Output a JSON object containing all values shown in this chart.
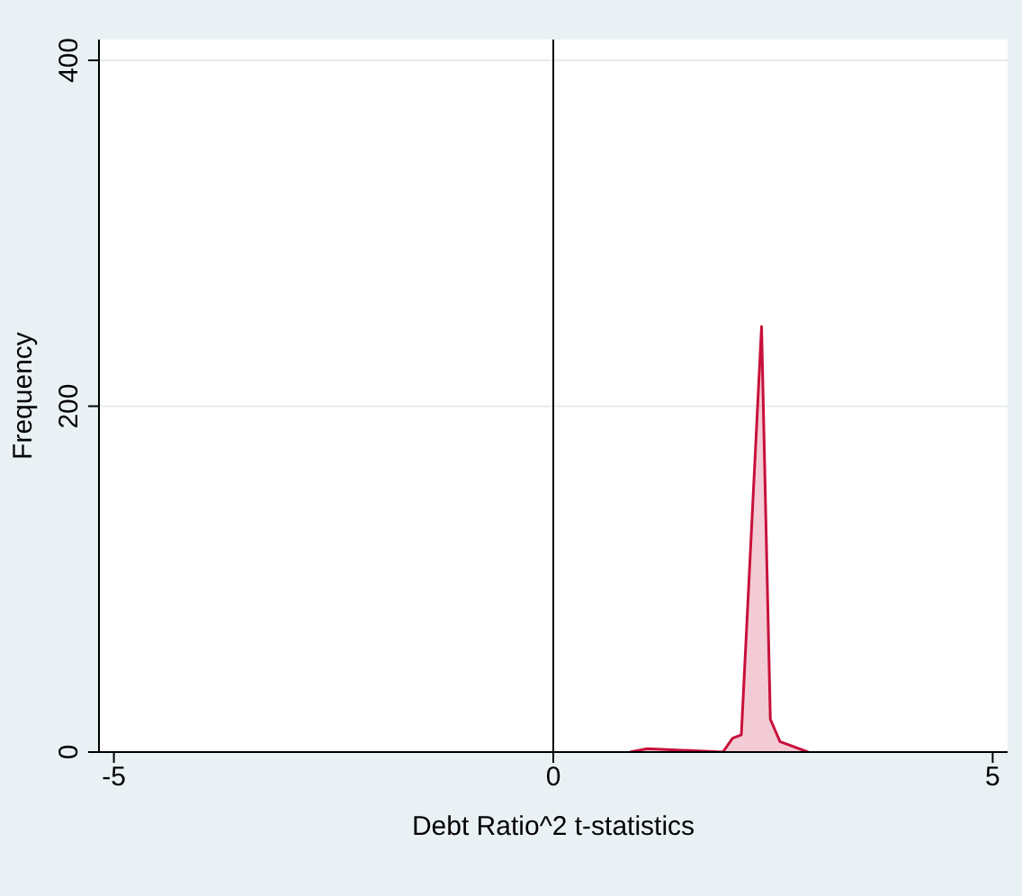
{
  "chart_data": {
    "type": "area",
    "xlabel": "Debt Ratio^2 t-statistics",
    "ylabel": "Frequency",
    "x": [
      0.87,
      1.07,
      1.93,
      2.04,
      2.14,
      2.37,
      2.47,
      2.58,
      2.9
    ],
    "series": [
      {
        "color": "#c8103a",
        "values": [
          0,
          2,
          0,
          8,
          10,
          246,
          19,
          6,
          0
        ]
      }
    ],
    "xlim": [
      -5.17,
      5.17
    ],
    "xticks": [
      -5,
      0,
      5
    ],
    "ylim": [
      0,
      412
    ],
    "yticks": [
      0,
      200,
      400
    ],
    "grid": "y",
    "ref_lines": [
      {
        "axis": "x",
        "value": 0,
        "color": "#000000"
      }
    ]
  }
}
